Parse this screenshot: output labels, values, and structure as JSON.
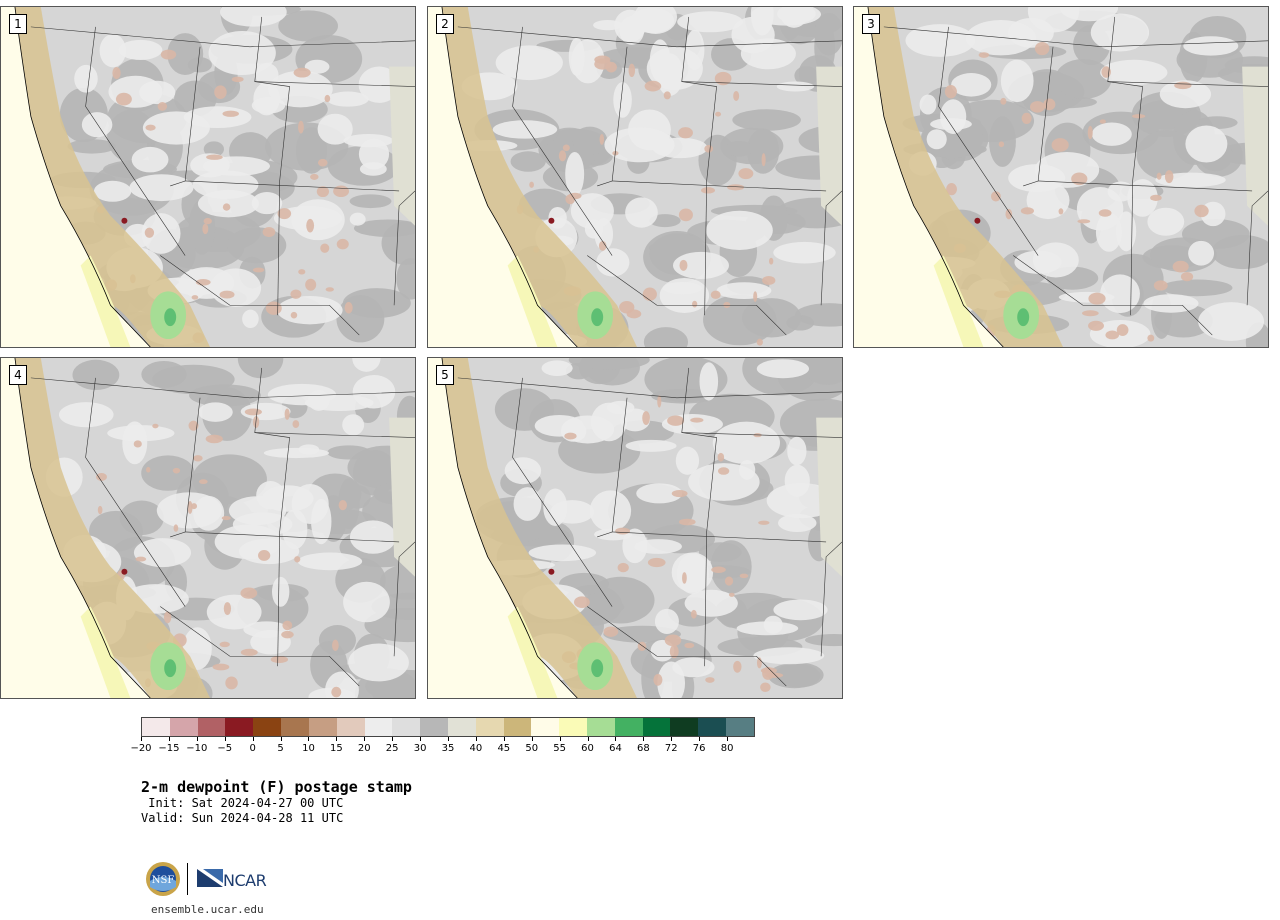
{
  "panels": [
    {
      "label": "1"
    },
    {
      "label": "2"
    },
    {
      "label": "3"
    },
    {
      "label": "4"
    },
    {
      "label": "5"
    }
  ],
  "colorbar": {
    "colors": [
      "#f4e9ea",
      "#d5a5aa",
      "#b16165",
      "#8a1a22",
      "#8a4312",
      "#a8764f",
      "#c69e83",
      "#e2cabc",
      "#ededed",
      "#dedede",
      "#b7b7b7",
      "#e1e1d6",
      "#e6d8b0",
      "#ccb67a",
      "#fffce8",
      "#fafbb7",
      "#a6dd95",
      "#43b162",
      "#05733a",
      "#0f3c21",
      "#1b4e52",
      "#577e83"
    ],
    "tick_labels": [
      "−20",
      "−15",
      "−10",
      "−5",
      "0",
      "5",
      "10",
      "15",
      "20",
      "25",
      "30",
      "35",
      "40",
      "45",
      "50",
      "55",
      "60",
      "64",
      "68",
      "72",
      "76",
      "80"
    ]
  },
  "title": "2-m dewpoint (F) postage stamp",
  "init_line": " Init: Sat 2024-04-27 00 UTC",
  "valid_line": "Valid: Sun 2024-04-28 11 UTC",
  "logos": {
    "nsf": "NSF",
    "ncar": "NCAR"
  },
  "website": "ensemble.ucar.edu"
}
